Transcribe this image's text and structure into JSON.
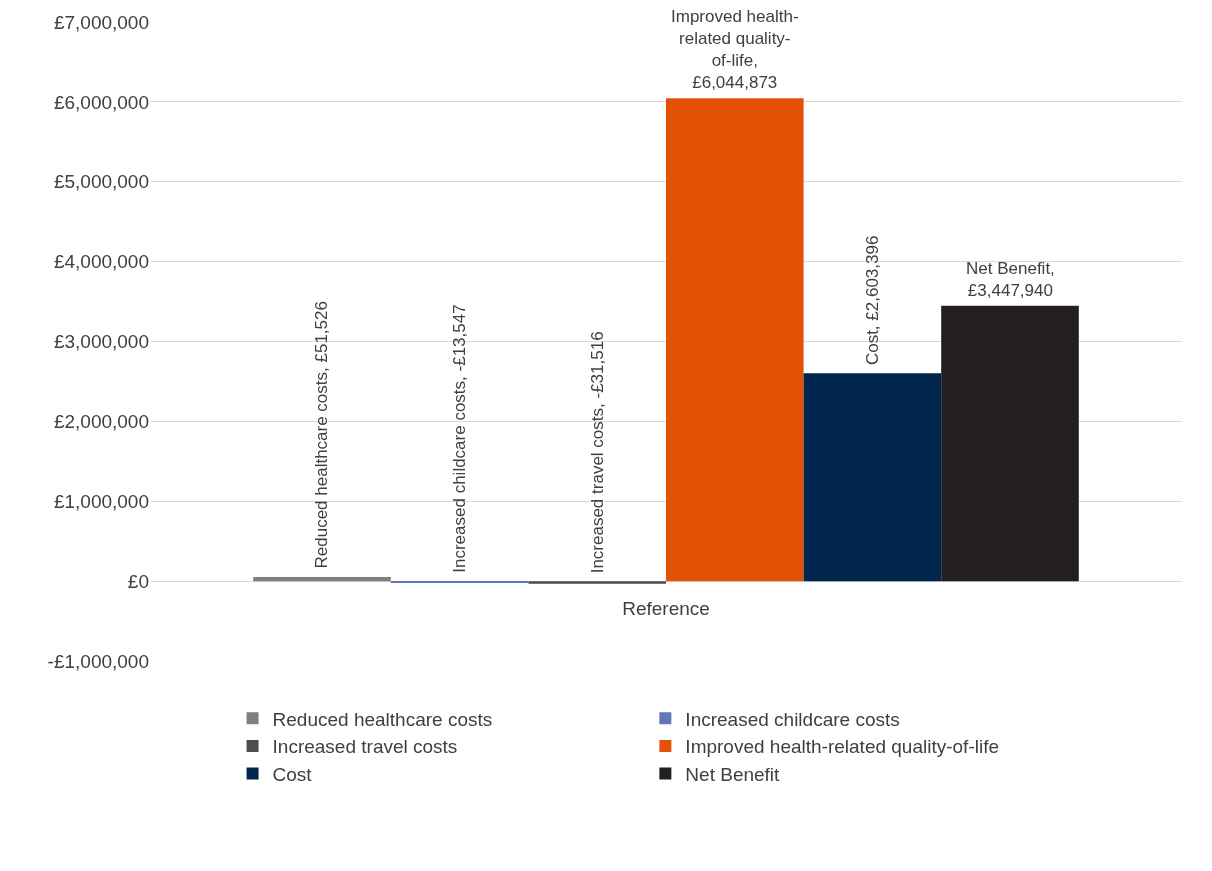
{
  "chart_data": {
    "type": "bar",
    "categories": [
      "Reference"
    ],
    "series": [
      {
        "name": "Reduced healthcare costs",
        "color": "#7f7f7f",
        "values": [
          51526
        ],
        "value_labels": [
          "Reduced healthcare costs, £51,526"
        ]
      },
      {
        "name": "Increased childcare costs",
        "color": "#6077b8",
        "values": [
          -13547
        ],
        "value_labels": [
          "Increased childcare costs, -£13,547"
        ]
      },
      {
        "name": "Increased travel costs",
        "color": "#4d4d4d",
        "values": [
          -31516
        ],
        "value_labels": [
          "Increased travel costs, -£31,516"
        ]
      },
      {
        "name": "Improved health-related quality-of-life",
        "color": "#e15207",
        "values": [
          6044873
        ],
        "value_labels": [
          "Improved health-related quality-of-life, £6,044,873"
        ]
      },
      {
        "name": "Cost",
        "color": "#00264d",
        "values": [
          2603396
        ],
        "value_labels": [
          "Cost, £2,603,396"
        ]
      },
      {
        "name": "Net Benefit",
        "color": "#231f20",
        "values": [
          3447940
        ],
        "value_labels": [
          "Net Benefit, £3,447,940"
        ]
      }
    ],
    "ylim": [
      -1000000,
      7000000
    ],
    "yticks": [
      {
        "value": -1000000,
        "label": "-£1,000,000"
      },
      {
        "value": 0,
        "label": "£0"
      },
      {
        "value": 1000000,
        "label": "£1,000,000"
      },
      {
        "value": 2000000,
        "label": "£2,000,000"
      },
      {
        "value": 3000000,
        "label": "£3,000,000"
      },
      {
        "value": 4000000,
        "label": "£4,000,000"
      },
      {
        "value": 5000000,
        "label": "£5,000,000"
      },
      {
        "value": 6000000,
        "label": "£6,000,000"
      },
      {
        "value": 7000000,
        "label": "£7,000,000"
      }
    ],
    "grid": "y",
    "legend": "bottom"
  }
}
